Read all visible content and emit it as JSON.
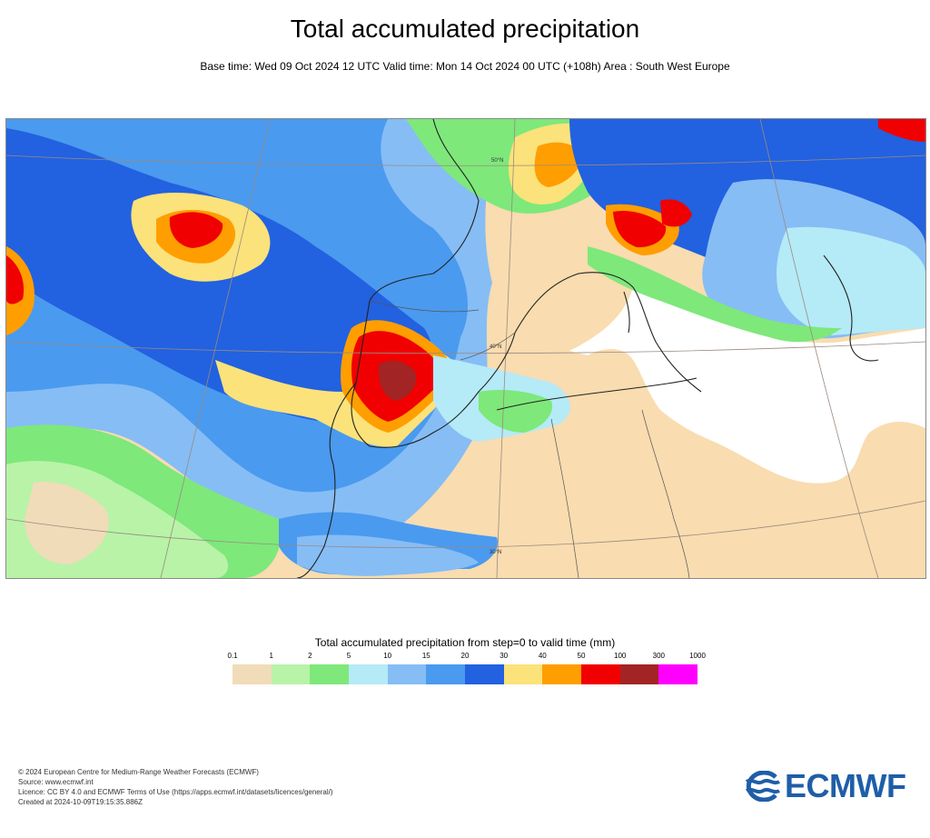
{
  "title": "Total accumulated precipitation",
  "subtitle": "Base time: Wed 09 Oct 2024 12 UTC Valid time: Mon 14 Oct 2024 00 UTC (+108h) Area : South West Europe",
  "map": {
    "graticule_labels": [
      "50°N",
      "40°N",
      "30°N"
    ],
    "colors": {
      "land_dry": "#f9dcb0",
      "sea_dry": "#ffffff",
      "c0_1": "#f0dcb8",
      "c1": "#b8f3a8",
      "c2": "#7ee87a",
      "c5": "#b5eaf7",
      "c10": "#86bdf5",
      "c15": "#4a9aef",
      "c20": "#2261e0",
      "c30": "#fbe27a",
      "c40": "#ff9e00",
      "c50": "#f00000",
      "c100": "#a32424",
      "c300": "#ff00ff",
      "coast": "#222222",
      "border": "#555555",
      "graticule": "#9a8a80"
    }
  },
  "legend": {
    "title": "Total accumulated precipitation from step=0 to valid time (mm)",
    "ticks": [
      "0.1",
      "1",
      "2",
      "5",
      "10",
      "15",
      "20",
      "30",
      "40",
      "50",
      "100",
      "300",
      "1000"
    ],
    "colors": [
      "#f0dcb8",
      "#b8f3a8",
      "#7ee87a",
      "#b5eaf7",
      "#86bdf5",
      "#4a9aef",
      "#2261e0",
      "#fbe27a",
      "#ff9e00",
      "#f00000",
      "#a32424",
      "#ff00ff"
    ]
  },
  "footer": {
    "line1": "© 2024 European Centre for Medium-Range Weather Forecasts (ECMWF)",
    "line2": "Source: www.ecmwf.int",
    "line3": "Licence: CC BY 4.0 and ECMWF Terms of Use (https://apps.ecmwf.int/datasets/licences/general/)",
    "line4": "Created at 2024-10-09T19:15:35.886Z"
  },
  "logo": {
    "text": "ECMWF",
    "color": "#1f5ea8"
  }
}
